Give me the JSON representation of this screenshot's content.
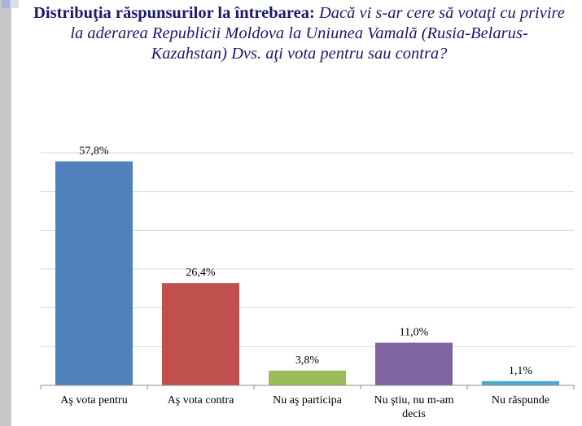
{
  "title": {
    "lead": "Distribuţia răspunsurilor la întrebarea:",
    "question": "Dacă vi s-ar cere să votaţi cu privire la aderarea Republicii Moldova la Uniunea Vamală (Rusia-Belarus-Kazahstan) Dvs. aţi vota pentru sau contra?"
  },
  "chart_data": {
    "type": "bar",
    "categories": [
      [
        "Aş vota pentru"
      ],
      [
        "Aş vota contra"
      ],
      [
        "Nu aş participa"
      ],
      [
        "Nu ştiu, nu m-am",
        "decis"
      ],
      [
        "Nu răspunde"
      ]
    ],
    "values": [
      57.8,
      26.4,
      3.8,
      11.0,
      1.1
    ],
    "data_labels": [
      "57,8%",
      "26,4%",
      "3,8%",
      "11,0%",
      "1,1%"
    ],
    "colors": [
      "#4f81bd",
      "#c0504d",
      "#9bbb59",
      "#8064a2",
      "#4bacc6"
    ],
    "ylim": [
      0,
      60
    ],
    "grid": true,
    "legend": "none"
  }
}
